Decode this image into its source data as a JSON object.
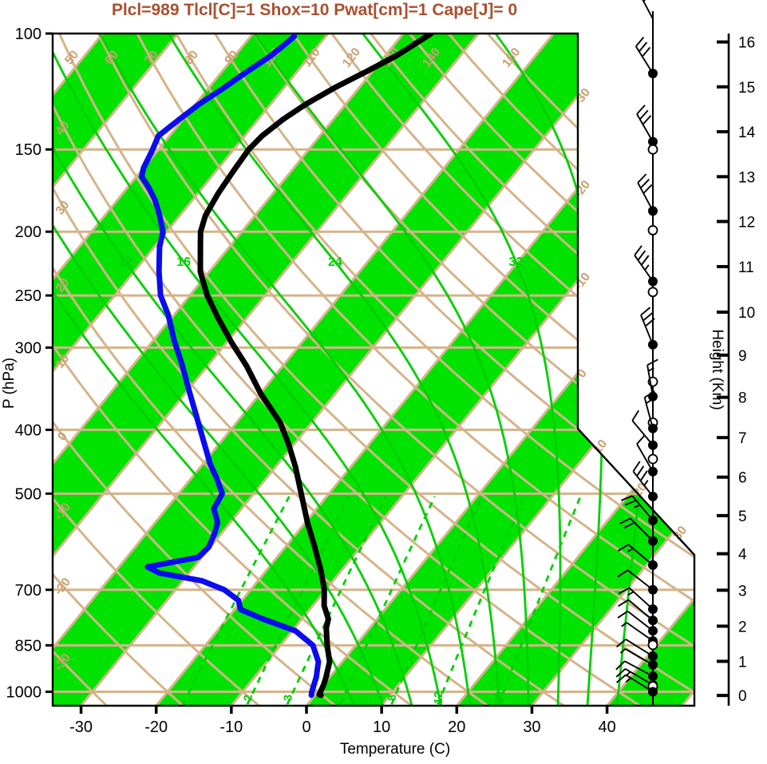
{
  "title": {
    "text": "Plcl=989 Tlcl[C]=1 Shox=10 Pwat[cm]=1 Cape[J]= 0",
    "color": "#A9502F"
  },
  "axes": {
    "pressure": {
      "label": "P (hPa)",
      "ticks": [
        100,
        150,
        200,
        250,
        300,
        400,
        500,
        700,
        850,
        1000
      ]
    },
    "temperature": {
      "label": "Temperature (C)",
      "ticks": [
        -30,
        -20,
        -10,
        0,
        10,
        20,
        30,
        40
      ]
    },
    "height": {
      "label": "Height (Km)",
      "ticks": [
        0,
        1,
        2,
        3,
        4,
        5,
        6,
        7,
        8,
        9,
        10,
        11,
        12,
        13,
        14,
        15,
        16
      ],
      "tick_pressures": [
        1013,
        899,
        795,
        701,
        617,
        540,
        472,
        411,
        357,
        308,
        265,
        226,
        193,
        165,
        141,
        120.5,
        103
      ]
    }
  },
  "background": {
    "colors": {
      "band_green": "#00E300",
      "line_green": "#00CF00",
      "tan": "#D5B48A",
      "label_tan": "#C9A071",
      "frame": "#000000",
      "temperature_curve": "#000000",
      "dewpoint_curve": "#0B0BEF"
    },
    "isotherms": {
      "min": -100,
      "max": 50,
      "step": 10,
      "right_edge_labels": [
        -30,
        -20,
        -10,
        0
      ],
      "diagonal_edge_labels": [
        10,
        20,
        30
      ]
    },
    "dry_adiabats": {
      "min": -40,
      "max": 160,
      "step": 10,
      "top_labels": [
        50,
        60,
        70,
        80,
        90,
        100,
        110,
        120,
        130,
        140,
        160
      ],
      "left_labels": [
        -30,
        -20,
        -10,
        0,
        10,
        20,
        30,
        40
      ]
    },
    "moist_adiabats": {
      "values": [
        4,
        8,
        12,
        16,
        20,
        24,
        28,
        32,
        36,
        40
      ],
      "labels": [
        12,
        16,
        24,
        32
      ]
    },
    "mixing_ratio_lines": {
      "values": [
        1,
        2,
        3,
        5,
        8,
        12,
        20
      ],
      "labels": [
        2,
        3,
        8,
        12,
        20
      ]
    }
  },
  "chart_data": {
    "type": "line",
    "title": "Plcl=989 Tlcl[C]=1 Shox=10 Pwat[cm]=1 Cape[J]= 0",
    "xlabel": "Temperature (C)",
    "ylabel": "P (hPa)",
    "ylabel_right": "Height (Km)",
    "x_range": [
      -35,
      45
    ],
    "pressure_range": [
      100,
      1050
    ],
    "pressure_scale": "log",
    "series": [
      {
        "name": "temperature",
        "color": "#000000",
        "points": [
          [
            1012,
            0.8
          ],
          [
            1010,
            0.5
          ],
          [
            975,
            0.0
          ],
          [
            950,
            -0.5
          ],
          [
            900,
            -1.7
          ],
          [
            850,
            -3.8
          ],
          [
            800,
            -5.8
          ],
          [
            775,
            -6.5
          ],
          [
            740,
            -8.5
          ],
          [
            700,
            -10.2
          ],
          [
            655,
            -12.7
          ],
          [
            600,
            -16.3
          ],
          [
            555,
            -19.6
          ],
          [
            500,
            -23.7
          ],
          [
            455,
            -27.4
          ],
          [
            420,
            -30.8
          ],
          [
            390,
            -34.2
          ],
          [
            352,
            -40.0
          ],
          [
            320,
            -44.8
          ],
          [
            295,
            -49.3
          ],
          [
            270,
            -53.9
          ],
          [
            250,
            -57.7
          ],
          [
            230,
            -61.2
          ],
          [
            210,
            -64.0
          ],
          [
            200,
            -65.5
          ],
          [
            189,
            -66.6
          ],
          [
            175,
            -67.3
          ],
          [
            162,
            -67.7
          ],
          [
            150,
            -68.0
          ],
          [
            143,
            -67.7
          ],
          [
            135,
            -66.7
          ],
          [
            128,
            -65.3
          ],
          [
            121,
            -63.3
          ],
          [
            114,
            -60.7
          ],
          [
            108,
            -58.5
          ],
          [
            104,
            -57.4
          ],
          [
            100,
            -56.3
          ]
        ]
      },
      {
        "name": "dewpoint",
        "color": "#0B0BEF",
        "points": [
          [
            1012,
            -0.5
          ],
          [
            1000,
            -0.8
          ],
          [
            950,
            -1.8
          ],
          [
            900,
            -3.2
          ],
          [
            850,
            -5.7
          ],
          [
            808,
            -9.6
          ],
          [
            775,
            -15.2
          ],
          [
            750,
            -19.2
          ],
          [
            726,
            -20.5
          ],
          [
            700,
            -23.5
          ],
          [
            678,
            -27.5
          ],
          [
            660,
            -34.0
          ],
          [
            646,
            -36.2
          ],
          [
            625,
            -30.5
          ],
          [
            603,
            -30.2
          ],
          [
            575,
            -30.9
          ],
          [
            553,
            -31.7
          ],
          [
            527,
            -33.7
          ],
          [
            500,
            -34.2
          ],
          [
            475,
            -36.5
          ],
          [
            451,
            -39.0
          ],
          [
            413,
            -42.7
          ],
          [
            379,
            -46.3
          ],
          [
            347,
            -50.0
          ],
          [
            318,
            -53.6
          ],
          [
            292,
            -57.3
          ],
          [
            268,
            -60.7
          ],
          [
            250,
            -63.9
          ],
          [
            230,
            -66.7
          ],
          [
            211,
            -69.3
          ],
          [
            200,
            -70.5
          ],
          [
            189,
            -72.7
          ],
          [
            179,
            -75.0
          ],
          [
            171,
            -77.3
          ],
          [
            165,
            -79.3
          ],
          [
            160,
            -80.0
          ],
          [
            151,
            -80.7
          ],
          [
            143,
            -81.5
          ],
          [
            135,
            -80.5
          ],
          [
            128,
            -79.5
          ],
          [
            121,
            -78.0
          ],
          [
            114,
            -76.6
          ],
          [
            108,
            -75.2
          ],
          [
            104,
            -74.6
          ],
          [
            101,
            -74.2
          ]
        ]
      }
    ],
    "wind_barbs": [
      {
        "p": 95,
        "marker": "none",
        "angle": 118,
        "full": 2,
        "half": 1,
        "side": -1
      },
      {
        "p": 115,
        "marker": "dot",
        "angle": 122,
        "full": 3,
        "half": 0,
        "side": -1
      },
      {
        "p": 146,
        "marker": "dot",
        "angle": 120,
        "full": 3,
        "half": 0,
        "side": -1
      },
      {
        "p": 150,
        "marker": "circle"
      },
      {
        "p": 186,
        "marker": "dot",
        "angle": 118,
        "full": 3,
        "half": 0,
        "side": -1
      },
      {
        "p": 199,
        "marker": "circle"
      },
      {
        "p": 238,
        "marker": "dot",
        "angle": 125,
        "full": 3,
        "half": 1,
        "side": -1
      },
      {
        "p": 247,
        "marker": "circle"
      },
      {
        "p": 297,
        "marker": "dot",
        "angle": 112,
        "full": 3,
        "half": 0,
        "side": -1
      },
      {
        "p": 338,
        "marker": "circle"
      },
      {
        "p": 356,
        "marker": "dot",
        "angle": 100,
        "full": 1,
        "half": 1,
        "side": -1
      },
      {
        "p": 390,
        "marker": "circle"
      },
      {
        "p": 398,
        "marker": "dot",
        "angle": 105,
        "full": 1,
        "half": 1,
        "side": -1
      },
      {
        "p": 422,
        "marker": "dot",
        "angle": 130,
        "full": 1,
        "half": 0,
        "side": -1
      },
      {
        "p": 443,
        "marker": "circle"
      },
      {
        "p": 463,
        "marker": "dot",
        "angle": 120,
        "full": 1,
        "half": 0,
        "side": -1
      },
      {
        "p": 505,
        "marker": "dot",
        "angle": 128,
        "full": 3,
        "half": 1,
        "side": -1
      },
      {
        "p": 549,
        "marker": "dot",
        "angle": 130,
        "full": 2,
        "half": 1,
        "side": 1
      },
      {
        "p": 590,
        "marker": "dot",
        "angle": 135,
        "full": 2,
        "half": 0,
        "side": 1
      },
      {
        "p": 642,
        "marker": "dot",
        "angle": 140,
        "full": 1,
        "half": 1,
        "side": 1
      },
      {
        "p": 700,
        "marker": "dot",
        "angle": 142,
        "full": 1,
        "half": 0,
        "side": 1
      },
      {
        "p": 749,
        "marker": "dot",
        "angle": 138,
        "full": 1,
        "half": 1,
        "side": 1
      },
      {
        "p": 779,
        "marker": "dot",
        "angle": 140,
        "full": 1,
        "half": 0,
        "side": 1
      },
      {
        "p": 808,
        "marker": "dot",
        "angle": 142,
        "full": 1,
        "half": 0,
        "side": 1
      },
      {
        "p": 837,
        "marker": "dot",
        "angle": 145,
        "full": 0,
        "half": 1,
        "side": 1
      },
      {
        "p": 849,
        "marker": "circle"
      },
      {
        "p": 883,
        "marker": "dot",
        "angle": 148,
        "full": 1,
        "half": 0,
        "side": 1
      },
      {
        "p": 910,
        "marker": "dot",
        "angle": 150,
        "full": 0,
        "half": 1,
        "side": 1
      },
      {
        "p": 947,
        "marker": "dot",
        "angle": 152,
        "full": 1,
        "half": 0,
        "side": 1
      },
      {
        "p": 976,
        "marker": "dot",
        "angle": 150,
        "full": 1,
        "half": 1,
        "side": 1
      },
      {
        "p": 981,
        "marker": "circle"
      },
      {
        "p": 1000,
        "marker": "dot",
        "angle": 148,
        "full": 1,
        "half": 1,
        "side": 1
      }
    ]
  }
}
